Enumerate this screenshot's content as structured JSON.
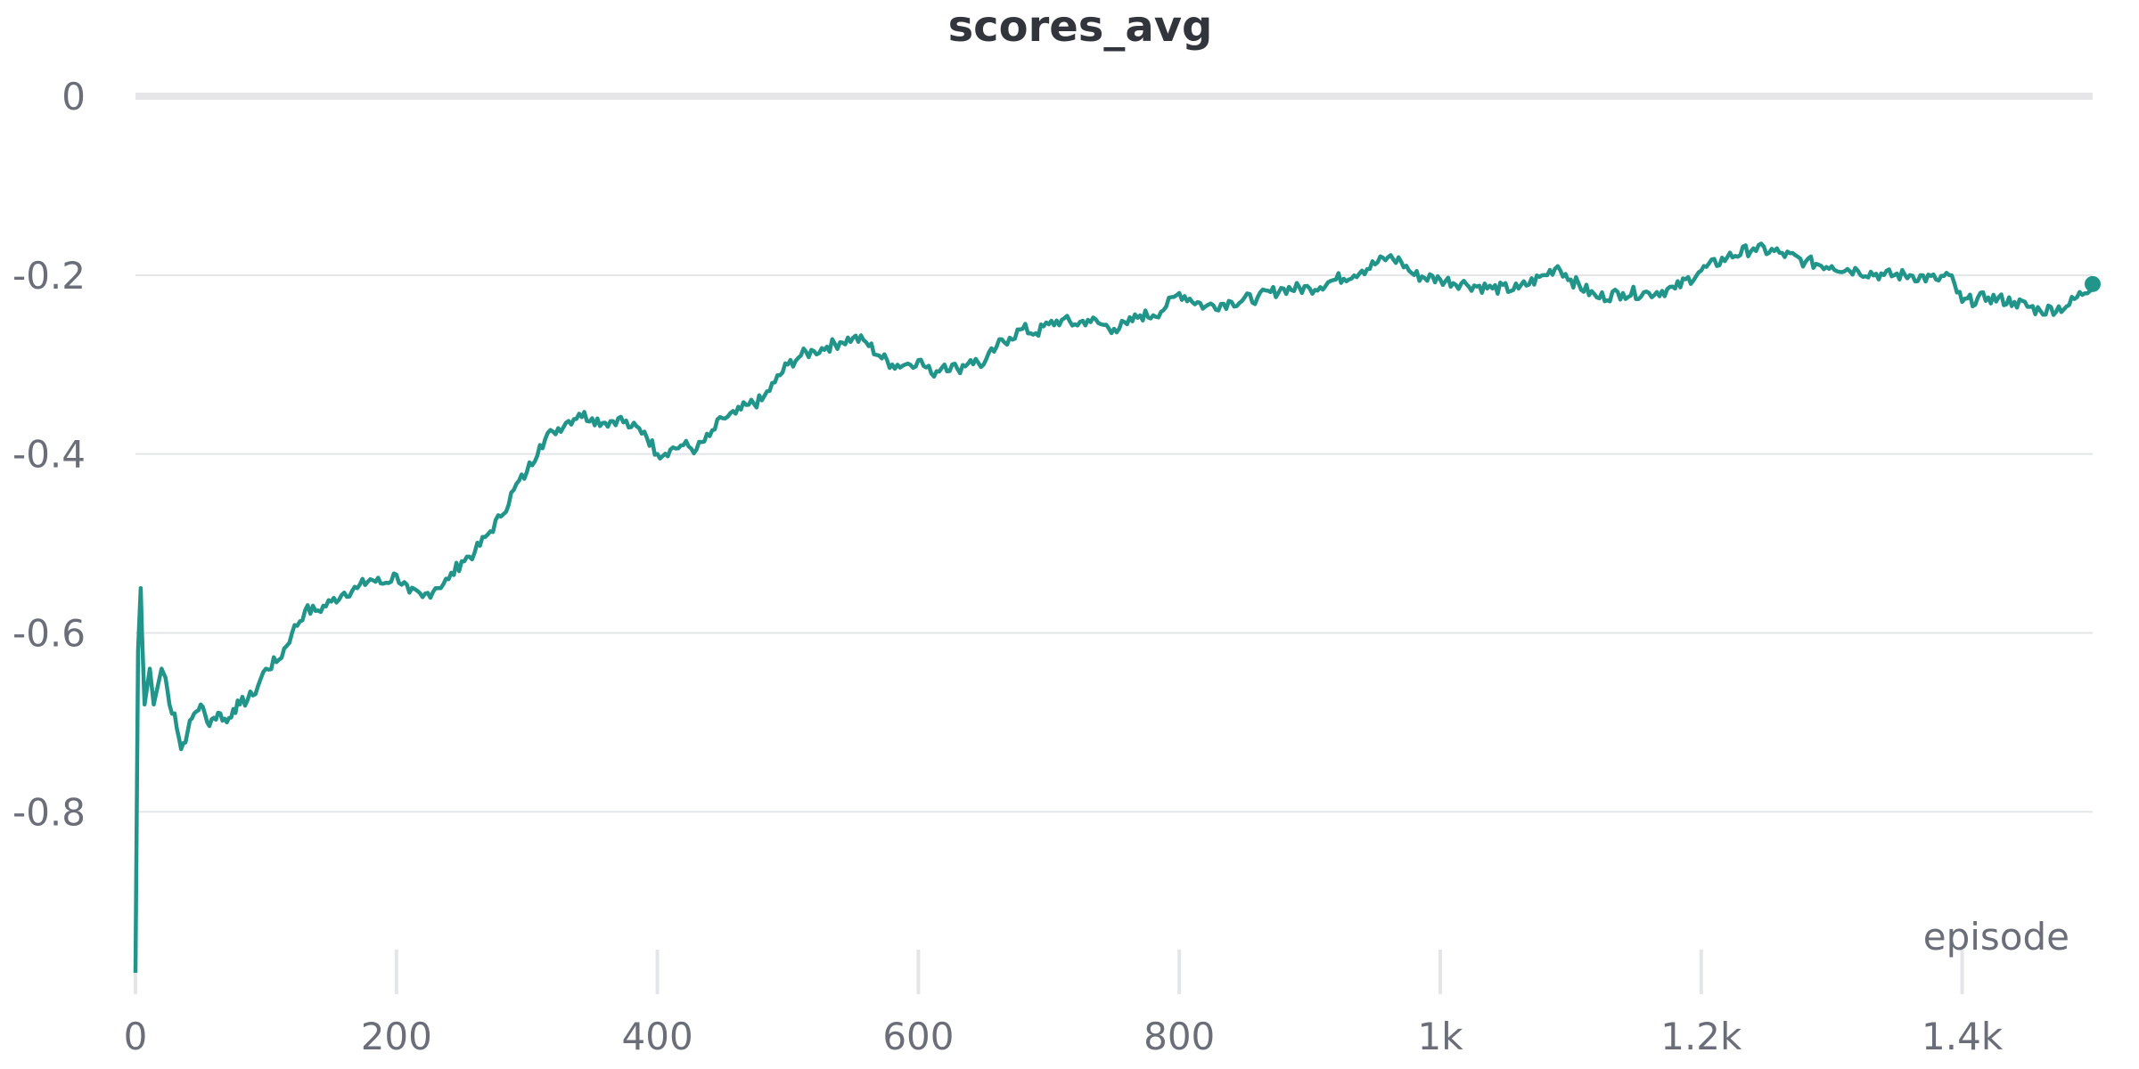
{
  "chart_data": {
    "type": "line",
    "title": "scores_avg",
    "xlabel": "episode",
    "ylabel": "",
    "xlim": [
      0,
      1500
    ],
    "ylim": [
      -0.98,
      0
    ],
    "grid": true,
    "line_color": "#22958a",
    "x_ticks": [
      {
        "value": 0,
        "label": "0"
      },
      {
        "value": 200,
        "label": "200"
      },
      {
        "value": 400,
        "label": "400"
      },
      {
        "value": 600,
        "label": "600"
      },
      {
        "value": 800,
        "label": "800"
      },
      {
        "value": 1000,
        "label": "1k"
      },
      {
        "value": 1200,
        "label": "1.2k"
      },
      {
        "value": 1400,
        "label": "1.4k"
      }
    ],
    "y_ticks": [
      {
        "value": 0,
        "label": "0"
      },
      {
        "value": -0.2,
        "label": "-0.2"
      },
      {
        "value": -0.4,
        "label": "-0.4"
      },
      {
        "value": -0.6,
        "label": "-0.6"
      },
      {
        "value": -0.8,
        "label": "-0.8"
      }
    ],
    "series": [
      {
        "x": [
          0,
          2,
          4,
          5,
          7,
          9,
          11,
          14,
          17,
          20,
          23,
          26,
          30,
          35,
          40,
          45,
          50,
          55,
          60,
          65,
          70,
          75,
          80,
          90,
          100,
          110,
          120,
          130,
          140,
          150,
          160,
          170,
          180,
          190,
          200,
          210,
          220,
          230,
          240,
          250,
          260,
          270,
          280,
          290,
          300,
          310,
          320,
          330,
          340,
          350,
          360,
          370,
          380,
          390,
          400,
          410,
          420,
          430,
          440,
          450,
          460,
          470,
          480,
          490,
          500,
          510,
          520,
          530,
          540,
          550,
          560,
          570,
          580,
          590,
          600,
          610,
          620,
          630,
          640,
          650,
          660,
          670,
          680,
          690,
          700,
          710,
          720,
          730,
          740,
          750,
          760,
          770,
          780,
          790,
          800,
          820,
          840,
          860,
          880,
          900,
          920,
          940,
          960,
          970,
          980,
          1000,
          1020,
          1040,
          1060,
          1080,
          1090,
          1100,
          1120,
          1140,
          1160,
          1180,
          1200,
          1220,
          1240,
          1260,
          1280,
          1300,
          1320,
          1340,
          1360,
          1380,
          1390,
          1400,
          1420,
          1440,
          1460,
          1480,
          1500
        ],
        "y": [
          -0.98,
          -0.62,
          -0.55,
          -0.6,
          -0.68,
          -0.66,
          -0.64,
          -0.68,
          -0.66,
          -0.64,
          -0.65,
          -0.68,
          -0.69,
          -0.73,
          -0.71,
          -0.69,
          -0.68,
          -0.7,
          -0.695,
          -0.69,
          -0.7,
          -0.685,
          -0.68,
          -0.67,
          -0.64,
          -0.63,
          -0.6,
          -0.575,
          -0.575,
          -0.565,
          -0.555,
          -0.55,
          -0.54,
          -0.545,
          -0.535,
          -0.555,
          -0.56,
          -0.55,
          -0.54,
          -0.52,
          -0.51,
          -0.49,
          -0.47,
          -0.44,
          -0.42,
          -0.39,
          -0.375,
          -0.365,
          -0.355,
          -0.36,
          -0.365,
          -0.36,
          -0.37,
          -0.375,
          -0.4,
          -0.395,
          -0.39,
          -0.395,
          -0.38,
          -0.36,
          -0.355,
          -0.345,
          -0.34,
          -0.32,
          -0.3,
          -0.29,
          -0.285,
          -0.28,
          -0.275,
          -0.27,
          -0.275,
          -0.29,
          -0.3,
          -0.3,
          -0.295,
          -0.31,
          -0.3,
          -0.305,
          -0.295,
          -0.3,
          -0.28,
          -0.27,
          -0.26,
          -0.265,
          -0.255,
          -0.25,
          -0.255,
          -0.25,
          -0.255,
          -0.26,
          -0.255,
          -0.245,
          -0.245,
          -0.235,
          -0.22,
          -0.235,
          -0.23,
          -0.225,
          -0.215,
          -0.215,
          -0.205,
          -0.195,
          -0.18,
          -0.185,
          -0.2,
          -0.205,
          -0.21,
          -0.215,
          -0.215,
          -0.2,
          -0.19,
          -0.205,
          -0.225,
          -0.22,
          -0.22,
          -0.215,
          -0.195,
          -0.18,
          -0.17,
          -0.175,
          -0.185,
          -0.19,
          -0.195,
          -0.2,
          -0.2,
          -0.205,
          -0.2,
          -0.23,
          -0.225,
          -0.23,
          -0.24,
          -0.235,
          -0.21
        ]
      }
    ]
  }
}
